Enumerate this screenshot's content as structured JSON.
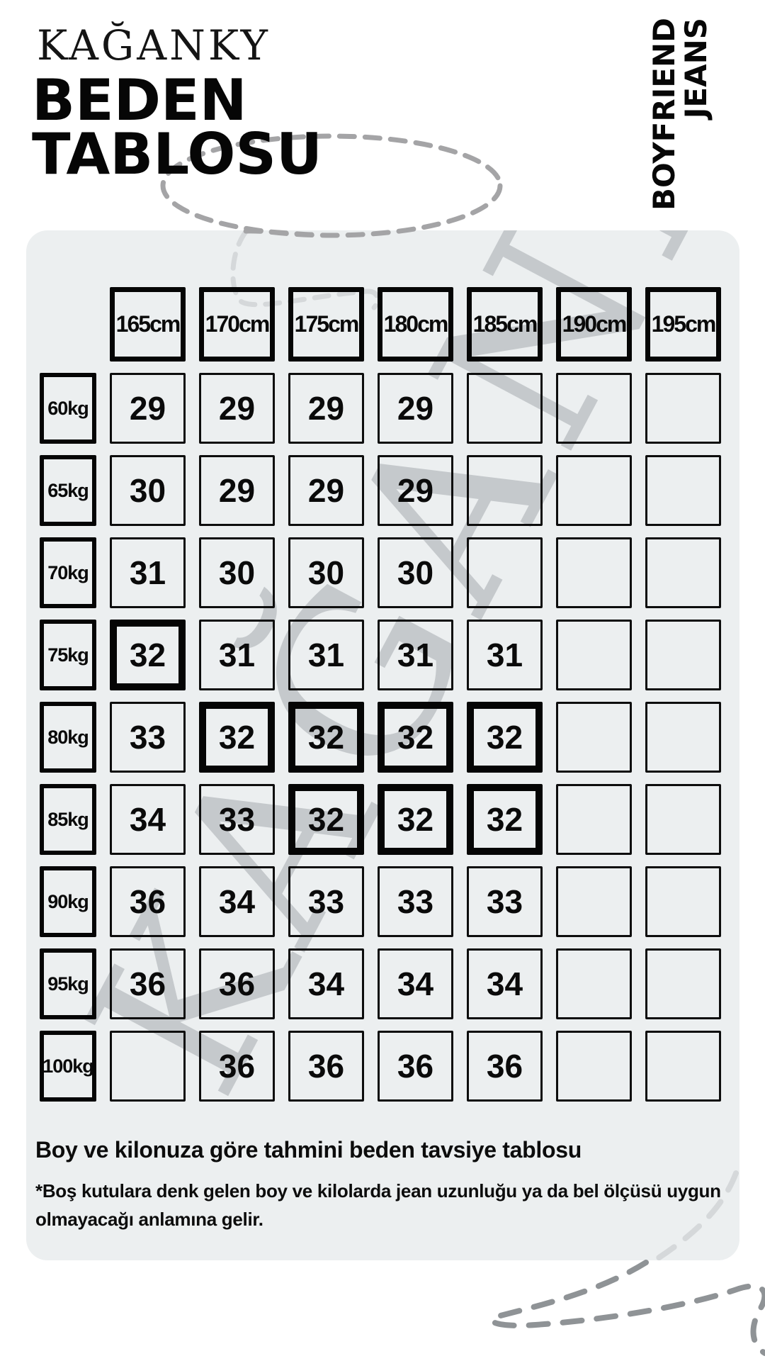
{
  "brand": "KAĞANKY",
  "title": {
    "line1": "BEDEN",
    "line2": "TABLOSU"
  },
  "product": {
    "line1": "BOYFRIEND",
    "line2": "JEANS"
  },
  "watermark": "KAĞANKY",
  "footer": {
    "caption": "Boy ve kilonuza göre tahmini beden tavsiye tablosu",
    "note": "*Boş kutulara denk gelen boy ve kilolarda jean uzunluğu ya da bel ölçüsü uygun olmayacağı anlamına gelir."
  },
  "colors": {
    "background": "#ffffff",
    "panel_bg": "#eceff0",
    "ink": "#0a0a0a",
    "watermark_gray": "#c5c9cc",
    "dash_dark": "#9b9ea0",
    "dash_light": "#d5d8da"
  },
  "chart_data": {
    "type": "table",
    "title": "BEDEN TABLOSU",
    "subtitle": "BOYFRIEND JEANS",
    "columns": [
      "165cm",
      "170cm",
      "175cm",
      "180cm",
      "185cm",
      "190cm",
      "195cm"
    ],
    "row_labels": [
      "60kg",
      "65kg",
      "70kg",
      "75kg",
      "80kg",
      "85kg",
      "90kg",
      "95kg",
      "100kg"
    ],
    "values": [
      [
        "29",
        "29",
        "29",
        "29",
        "",
        "",
        ""
      ],
      [
        "30",
        "29",
        "29",
        "29",
        "",
        "",
        ""
      ],
      [
        "31",
        "30",
        "30",
        "30",
        "",
        "",
        ""
      ],
      [
        "32",
        "31",
        "31",
        "31",
        "31",
        "",
        ""
      ],
      [
        "33",
        "32",
        "32",
        "32",
        "32",
        "",
        ""
      ],
      [
        "34",
        "33",
        "32",
        "32",
        "32",
        "",
        ""
      ],
      [
        "36",
        "34",
        "33",
        "33",
        "33",
        "",
        ""
      ],
      [
        "36",
        "36",
        "34",
        "34",
        "34",
        "",
        ""
      ],
      [
        "",
        "36",
        "36",
        "36",
        "36",
        "",
        ""
      ]
    ],
    "highlighted": [
      [
        3,
        0
      ],
      [
        4,
        1
      ],
      [
        4,
        2
      ],
      [
        4,
        3
      ],
      [
        4,
        4
      ],
      [
        5,
        2
      ],
      [
        5,
        3
      ],
      [
        5,
        4
      ]
    ]
  }
}
